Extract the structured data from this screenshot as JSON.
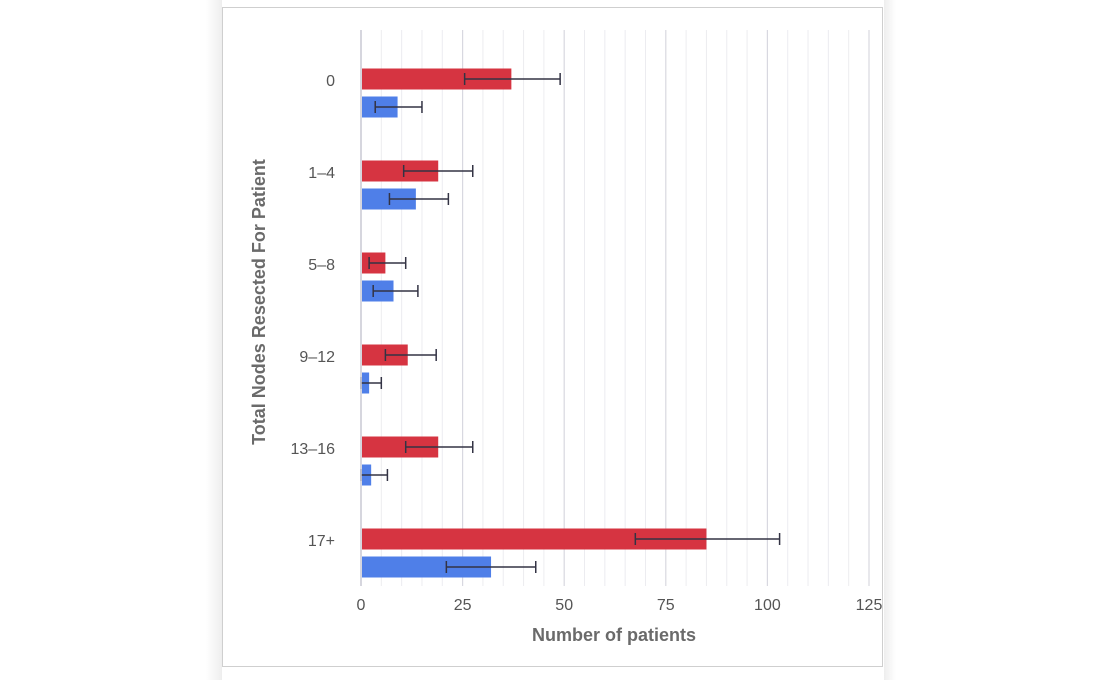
{
  "chart_data": {
    "type": "bar",
    "orientation": "horizontal",
    "title": "",
    "xlabel": "Number of patients",
    "ylabel": "Total Nodes Resected For Patient",
    "categories": [
      "0",
      "1–4",
      "5–8",
      "9–12",
      "13–16",
      "17+"
    ],
    "xlim": [
      0,
      125
    ],
    "x_ticks": [
      "0",
      "25",
      "50",
      "75",
      "100",
      "125"
    ],
    "grid": true,
    "series": [
      {
        "color": "#d63441",
        "values": [
          37,
          19,
          6,
          11.5,
          19,
          85
        ],
        "error_low": [
          25.5,
          10.5,
          2,
          6,
          11,
          67.5
        ],
        "error_high": [
          49,
          27.5,
          11,
          18.5,
          27.5,
          103
        ]
      },
      {
        "color": "#4f7fe8",
        "values": [
          9,
          13.5,
          8,
          2,
          2.5,
          32
        ],
        "error_low": [
          3.5,
          7,
          3,
          0,
          0,
          21
        ],
        "error_high": [
          15,
          21.5,
          14,
          5,
          6.5,
          43
        ]
      }
    ],
    "error_bar_color": "#333344"
  }
}
